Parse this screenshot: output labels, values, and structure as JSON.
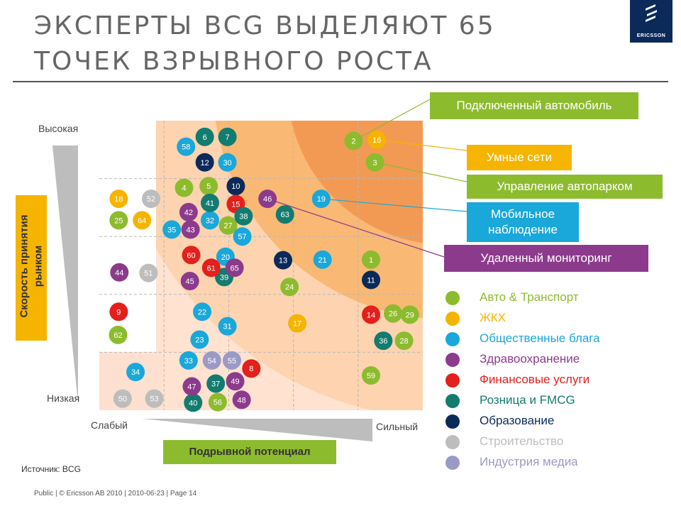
{
  "title": "Эксперты BCG выделяют 65 точек взрывного роста",
  "logo": "ERICSSON",
  "logo_icon": "ericsson-logo-icon",
  "source": "Источник: BCG",
  "footer": "Public | © Ericsson AB 2010 | 2010-06-23 | Page 14",
  "colors": {
    "auto": "#8dbb2e",
    "utilities": "#f5b400",
    "public": "#1aa7d9",
    "health": "#8c3b8c",
    "finance": "#e3201b",
    "retail": "#117c6f",
    "education": "#0b2a5a",
    "construction": "#bdbdbd",
    "media": "#9a9ac6"
  },
  "legend": [
    {
      "key": "auto",
      "label": "Авто & Транспорт"
    },
    {
      "key": "utilities",
      "label": "ЖКХ"
    },
    {
      "key": "public",
      "label": "Общественные блага"
    },
    {
      "key": "health",
      "label": "Здравоохранение"
    },
    {
      "key": "finance",
      "label": "Финансовые услуги"
    },
    {
      "key": "retail",
      "label": "Розница и FMCG"
    },
    {
      "key": "education",
      "label": "Образование"
    },
    {
      "key": "construction",
      "label": "Строительство"
    },
    {
      "key": "media",
      "label": "Индустрия медиа"
    }
  ],
  "callouts": [
    {
      "label": "Подключенный автомобиль",
      "key": "auto",
      "target": "2"
    },
    {
      "label": "Умные сети",
      "key": "utilities",
      "target": "16"
    },
    {
      "label": "Управление автопарком",
      "key": "auto",
      "target": "3"
    },
    {
      "label": "Мобильное наблюдение",
      "key": "public",
      "target": "19"
    },
    {
      "label": "Удаленный мониторинг",
      "key": "health",
      "target": "46"
    }
  ],
  "chart_data": {
    "type": "scatter",
    "xlabel": "Подрывной потенциал",
    "ylabel": "Скорость принятия рынком",
    "x_low": "Слабый",
    "x_high": "Сильный",
    "y_low": "Низкая",
    "y_high": "Высокая",
    "grid": "dashed 5x5",
    "xlim": [
      0,
      5
    ],
    "ylim": [
      0,
      5
    ],
    "points": [
      {
        "id": "1",
        "x": 4.2,
        "y": 2.6,
        "cat": "auto"
      },
      {
        "id": "2",
        "x": 3.93,
        "y": 4.65,
        "cat": "auto"
      },
      {
        "id": "3",
        "x": 4.26,
        "y": 4.28,
        "cat": "auto"
      },
      {
        "id": "4",
        "x": 1.31,
        "y": 3.84,
        "cat": "auto"
      },
      {
        "id": "5",
        "x": 1.69,
        "y": 3.87,
        "cat": "auto"
      },
      {
        "id": "6",
        "x": 1.63,
        "y": 4.72,
        "cat": "retail"
      },
      {
        "id": "7",
        "x": 1.98,
        "y": 4.72,
        "cat": "retail"
      },
      {
        "id": "8",
        "x": 2.35,
        "y": 0.72,
        "cat": "finance"
      },
      {
        "id": "9",
        "x": 0.3,
        "y": 1.7,
        "cat": "finance"
      },
      {
        "id": "10",
        "x": 2.11,
        "y": 3.87,
        "cat": "education"
      },
      {
        "id": "11",
        "x": 4.2,
        "y": 2.25,
        "cat": "education"
      },
      {
        "id": "12",
        "x": 1.63,
        "y": 4.28,
        "cat": "education"
      },
      {
        "id": "13",
        "x": 2.84,
        "y": 2.59,
        "cat": "education"
      },
      {
        "id": "14",
        "x": 4.2,
        "y": 1.65,
        "cat": "finance"
      },
      {
        "id": "15",
        "x": 2.11,
        "y": 3.56,
        "cat": "finance"
      },
      {
        "id": "16",
        "x": 4.29,
        "y": 4.67,
        "cat": "utilities"
      },
      {
        "id": "17",
        "x": 3.06,
        "y": 1.5,
        "cat": "utilities"
      },
      {
        "id": "18",
        "x": 0.3,
        "y": 3.65,
        "cat": "utilities"
      },
      {
        "id": "19",
        "x": 3.43,
        "y": 3.65,
        "cat": "public"
      },
      {
        "id": "20",
        "x": 1.95,
        "y": 2.65,
        "cat": "public"
      },
      {
        "id": "21",
        "x": 3.45,
        "y": 2.6,
        "cat": "public"
      },
      {
        "id": "22",
        "x": 1.59,
        "y": 1.7,
        "cat": "public"
      },
      {
        "id": "23",
        "x": 1.55,
        "y": 1.22,
        "cat": "public"
      },
      {
        "id": "24",
        "x": 2.94,
        "y": 2.13,
        "cat": "auto"
      },
      {
        "id": "25",
        "x": 0.3,
        "y": 3.28,
        "cat": "auto"
      },
      {
        "id": "26",
        "x": 4.54,
        "y": 1.67,
        "cat": "auto"
      },
      {
        "id": "27",
        "x": 1.99,
        "y": 3.19,
        "cat": "auto"
      },
      {
        "id": "28",
        "x": 4.71,
        "y": 1.2,
        "cat": "auto"
      },
      {
        "id": "29",
        "x": 4.8,
        "y": 1.65,
        "cat": "auto"
      },
      {
        "id": "30",
        "x": 1.98,
        "y": 4.28,
        "cat": "public"
      },
      {
        "id": "31",
        "x": 1.98,
        "y": 1.45,
        "cat": "public"
      },
      {
        "id": "32",
        "x": 1.71,
        "y": 3.28,
        "cat": "public"
      },
      {
        "id": "33",
        "x": 1.38,
        "y": 0.86,
        "cat": "public"
      },
      {
        "id": "34",
        "x": 0.56,
        "y": 0.66,
        "cat": "public"
      },
      {
        "id": "35",
        "x": 1.12,
        "y": 3.12,
        "cat": "public"
      },
      {
        "id": "36",
        "x": 4.39,
        "y": 1.2,
        "cat": "retail"
      },
      {
        "id": "37",
        "x": 1.8,
        "y": 0.46,
        "cat": "retail"
      },
      {
        "id": "38",
        "x": 2.23,
        "y": 3.35,
        "cat": "retail"
      },
      {
        "id": "39",
        "x": 1.93,
        "y": 2.3,
        "cat": "retail"
      },
      {
        "id": "40",
        "x": 1.45,
        "y": 0.13,
        "cat": "retail"
      },
      {
        "id": "41",
        "x": 1.71,
        "y": 3.58,
        "cat": "retail"
      },
      {
        "id": "42",
        "x": 1.38,
        "y": 3.42,
        "cat": "health"
      },
      {
        "id": "43",
        "x": 1.41,
        "y": 3.12,
        "cat": "health"
      },
      {
        "id": "44",
        "x": 0.31,
        "y": 2.38,
        "cat": "health"
      },
      {
        "id": "45",
        "x": 1.4,
        "y": 2.23,
        "cat": "health"
      },
      {
        "id": "46",
        "x": 2.6,
        "y": 3.65,
        "cat": "health"
      },
      {
        "id": "47",
        "x": 1.43,
        "y": 0.41,
        "cat": "health"
      },
      {
        "id": "48",
        "x": 2.2,
        "y": 0.18,
        "cat": "health"
      },
      {
        "id": "49",
        "x": 2.1,
        "y": 0.5,
        "cat": "health"
      },
      {
        "id": "50",
        "x": 0.36,
        "y": 0.2,
        "cat": "construction"
      },
      {
        "id": "51",
        "x": 0.76,
        "y": 2.37,
        "cat": "construction"
      },
      {
        "id": "52",
        "x": 0.8,
        "y": 3.65,
        "cat": "construction"
      },
      {
        "id": "53",
        "x": 0.85,
        "y": 0.2,
        "cat": "construction"
      },
      {
        "id": "54",
        "x": 1.74,
        "y": 0.86,
        "cat": "media"
      },
      {
        "id": "55",
        "x": 2.05,
        "y": 0.86,
        "cat": "media"
      },
      {
        "id": "56",
        "x": 1.83,
        "y": 0.14,
        "cat": "auto"
      },
      {
        "id": "57",
        "x": 2.21,
        "y": 3.0,
        "cat": "public"
      },
      {
        "id": "58",
        "x": 1.34,
        "y": 4.55,
        "cat": "public"
      },
      {
        "id": "59",
        "x": 4.2,
        "y": 0.6,
        "cat": "auto"
      },
      {
        "id": "60",
        "x": 1.42,
        "y": 2.68,
        "cat": "finance"
      },
      {
        "id": "61",
        "x": 1.73,
        "y": 2.46,
        "cat": "finance"
      },
      {
        "id": "62",
        "x": 0.29,
        "y": 1.3,
        "cat": "auto"
      },
      {
        "id": "63",
        "x": 2.87,
        "y": 3.38,
        "cat": "retail"
      },
      {
        "id": "64",
        "x": 0.66,
        "y": 3.28,
        "cat": "utilities"
      },
      {
        "id": "65",
        "x": 2.09,
        "y": 2.46,
        "cat": "health"
      }
    ]
  }
}
